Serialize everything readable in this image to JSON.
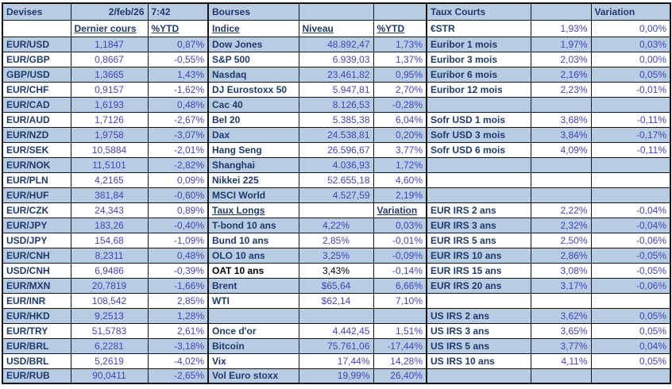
{
  "meta": {
    "date": "2/feb/26",
    "time": "7:42"
  },
  "colors": {
    "row_shading": "#b8cce4",
    "label_text": "#1f3a6e",
    "value_text": "#4244c0",
    "black_text": "#000000",
    "grid_border": "#151515"
  },
  "column_roles": [
    "currency-pair",
    "last-price",
    "ytd",
    "index-name",
    "level",
    "ytd",
    "rate-name",
    "rate",
    "variation"
  ],
  "grid": {
    "rows": [
      {
        "shaded": true,
        "cells": [
          {
            "t": "Devises",
            "k": "title"
          },
          {
            "t": "2/feb/26",
            "k": "date"
          },
          {
            "t": "7:42",
            "k": "time"
          },
          {
            "t": "Bourses",
            "k": "title"
          },
          {
            "k": "blank"
          },
          {
            "k": "blank"
          },
          {
            "t": "Taux Courts",
            "k": "title"
          },
          {
            "k": "blank"
          },
          {
            "t": "Variation",
            "k": "title"
          }
        ]
      },
      {
        "shaded": false,
        "cells": [
          {
            "k": "blank"
          },
          {
            "t": "Dernier cours",
            "k": "col-header"
          },
          {
            "t": "%YTD",
            "k": "col-header"
          },
          {
            "t": "Indice",
            "k": "col-header"
          },
          {
            "t": "Niveau",
            "k": "col-header"
          },
          {
            "t": "%YTD",
            "k": "col-header"
          },
          {
            "t": "€STR",
            "k": "label"
          },
          {
            "t": "1,93%",
            "k": "value"
          },
          {
            "t": "0,00%",
            "k": "value"
          }
        ]
      },
      {
        "shaded": true,
        "cells": [
          {
            "t": "EUR/USD",
            "k": "label"
          },
          {
            "t": "1,1847",
            "k": "value-center"
          },
          {
            "t": "0,87%",
            "k": "value"
          },
          {
            "t": "Dow Jones",
            "k": "label"
          },
          {
            "t": "48.892,47",
            "k": "value"
          },
          {
            "t": "1,73%",
            "k": "value"
          },
          {
            "t": "Euribor 1 mois",
            "k": "label"
          },
          {
            "t": "1,97%",
            "k": "value"
          },
          {
            "t": "0,03%",
            "k": "value"
          }
        ]
      },
      {
        "shaded": false,
        "cells": [
          {
            "t": "EUR/GBP",
            "k": "label"
          },
          {
            "t": "0,8667",
            "k": "value-center"
          },
          {
            "t": "-0,55%",
            "k": "value"
          },
          {
            "t": "S&P 500",
            "k": "label"
          },
          {
            "t": "6.939,03",
            "k": "value"
          },
          {
            "t": "1,37%",
            "k": "value"
          },
          {
            "t": "Euribor 3 mois",
            "k": "label"
          },
          {
            "t": "2,03%",
            "k": "value"
          },
          {
            "t": "0,00%",
            "k": "value"
          }
        ]
      },
      {
        "shaded": true,
        "cells": [
          {
            "t": "GBP/USD",
            "k": "label"
          },
          {
            "t": "1,3665",
            "k": "value-center"
          },
          {
            "t": "1,43%",
            "k": "value"
          },
          {
            "t": "Nasdaq",
            "k": "label"
          },
          {
            "t": "23.461,82",
            "k": "value"
          },
          {
            "t": "0,95%",
            "k": "value"
          },
          {
            "t": "Euribor 6 mois",
            "k": "label"
          },
          {
            "t": "2,16%",
            "k": "value"
          },
          {
            "t": "0,05%",
            "k": "value"
          }
        ]
      },
      {
        "shaded": false,
        "cells": [
          {
            "t": "EUR/CHF",
            "k": "label"
          },
          {
            "t": "0,9157",
            "k": "value-center"
          },
          {
            "t": "-1,62%",
            "k": "value"
          },
          {
            "t": "DJ Eurostoxx 50",
            "k": "label"
          },
          {
            "t": "5.947,81",
            "k": "value"
          },
          {
            "t": "2,70%",
            "k": "value"
          },
          {
            "t": "Euribor 12 mois",
            "k": "label"
          },
          {
            "t": "2,23%",
            "k": "value"
          },
          {
            "t": "-0,01%",
            "k": "value"
          }
        ]
      },
      {
        "shaded": true,
        "cells": [
          {
            "t": "EUR/CAD",
            "k": "label"
          },
          {
            "t": "1,6193",
            "k": "value-center"
          },
          {
            "t": "0,48%",
            "k": "value"
          },
          {
            "t": "Cac 40",
            "k": "label"
          },
          {
            "t": "8.126,53",
            "k": "value"
          },
          {
            "t": "-0,28%",
            "k": "value"
          },
          {
            "k": "blank"
          },
          {
            "k": "blank"
          },
          {
            "k": "blank"
          }
        ]
      },
      {
        "shaded": false,
        "cells": [
          {
            "t": "EUR/AUD",
            "k": "label"
          },
          {
            "t": "1,7126",
            "k": "value-center"
          },
          {
            "t": "-2,67%",
            "k": "value"
          },
          {
            "t": "Bel 20",
            "k": "label"
          },
          {
            "t": "5.385,38",
            "k": "value"
          },
          {
            "t": "6,04%",
            "k": "value"
          },
          {
            "t": "Sofr USD 1 mois",
            "k": "label"
          },
          {
            "t": "3,68%",
            "k": "value"
          },
          {
            "t": "-0,11%",
            "k": "value"
          }
        ]
      },
      {
        "shaded": true,
        "cells": [
          {
            "t": "EUR/NZD",
            "k": "label"
          },
          {
            "t": "1,9758",
            "k": "value-center"
          },
          {
            "t": "-3,07%",
            "k": "value"
          },
          {
            "t": "Dax",
            "k": "label"
          },
          {
            "t": "24.538,81",
            "k": "value"
          },
          {
            "t": "0,20%",
            "k": "value"
          },
          {
            "t": "Sofr USD 3 mois",
            "k": "label"
          },
          {
            "t": "3,84%",
            "k": "value"
          },
          {
            "t": "-0,17%",
            "k": "value"
          }
        ]
      },
      {
        "shaded": false,
        "cells": [
          {
            "t": "EUR/SEK",
            "k": "label"
          },
          {
            "t": "10,5884",
            "k": "value-center"
          },
          {
            "t": "-2,01%",
            "k": "value"
          },
          {
            "t": "Hang Seng",
            "k": "label"
          },
          {
            "t": "26.596,67",
            "k": "value"
          },
          {
            "t": "3,77%",
            "k": "value"
          },
          {
            "t": "Sofr USD 6 mois",
            "k": "label"
          },
          {
            "t": "4,09%",
            "k": "value"
          },
          {
            "t": "-0,11%",
            "k": "value"
          }
        ]
      },
      {
        "shaded": true,
        "cells": [
          {
            "t": "EUR/NOK",
            "k": "label"
          },
          {
            "t": "11,5101",
            "k": "value-center"
          },
          {
            "t": "-2,82%",
            "k": "value"
          },
          {
            "t": "Shanghai",
            "k": "label"
          },
          {
            "t": "4.036,93",
            "k": "value"
          },
          {
            "t": "1,72%",
            "k": "value"
          },
          {
            "k": "blank"
          },
          {
            "k": "blank"
          },
          {
            "k": "blank"
          }
        ]
      },
      {
        "shaded": false,
        "cells": [
          {
            "t": "EUR/PLN",
            "k": "label"
          },
          {
            "t": "4,2165",
            "k": "value-center"
          },
          {
            "t": "0,09%",
            "k": "value"
          },
          {
            "t": "Nikkei 225",
            "k": "label"
          },
          {
            "t": "52.655,18",
            "k": "value"
          },
          {
            "t": "4,60%",
            "k": "value"
          },
          {
            "k": "blank"
          },
          {
            "k": "blank"
          },
          {
            "k": "blank"
          }
        ]
      },
      {
        "shaded": true,
        "cells": [
          {
            "t": "EUR/HUF",
            "k": "label"
          },
          {
            "t": "381,84",
            "k": "value-center"
          },
          {
            "t": "-0,60%",
            "k": "value"
          },
          {
            "t": "MSCI World",
            "k": "label"
          },
          {
            "t": "4.527,59",
            "k": "value"
          },
          {
            "t": "2,19%",
            "k": "value"
          },
          {
            "k": "blank"
          },
          {
            "k": "blank"
          },
          {
            "k": "blank"
          }
        ]
      },
      {
        "shaded": false,
        "cells": [
          {
            "t": "EUR/CZK",
            "k": "label"
          },
          {
            "t": "24,343",
            "k": "value-center"
          },
          {
            "t": "0,89%",
            "k": "value"
          },
          {
            "t": "Taux Longs",
            "k": "col-header"
          },
          {
            "k": "blank"
          },
          {
            "t": "Variation",
            "k": "col-header"
          },
          {
            "t": "EUR IRS 2 ans",
            "k": "label"
          },
          {
            "t": "2,22%",
            "k": "value"
          },
          {
            "t": "-0,04%",
            "k": "value"
          }
        ]
      },
      {
        "shaded": true,
        "cells": [
          {
            "t": "EUR/JPY",
            "k": "label"
          },
          {
            "t": "183,26",
            "k": "value-center"
          },
          {
            "t": "-0,40%",
            "k": "value"
          },
          {
            "t": "T-bond 10 ans",
            "k": "label"
          },
          {
            "t": "4,22%",
            "k": "value-center"
          },
          {
            "t": "0,03%",
            "k": "value"
          },
          {
            "t": "EUR IRS 3 ans",
            "k": "label"
          },
          {
            "t": "2,32%",
            "k": "value"
          },
          {
            "t": "-0,04%",
            "k": "value"
          }
        ]
      },
      {
        "shaded": false,
        "cells": [
          {
            "t": "USD/JPY",
            "k": "label"
          },
          {
            "t": "154,68",
            "k": "value-center"
          },
          {
            "t": "-1,09%",
            "k": "value"
          },
          {
            "t": "Bund 10 ans",
            "k": "label"
          },
          {
            "t": "2,85%",
            "k": "value-center"
          },
          {
            "t": "-0,01%",
            "k": "value"
          },
          {
            "t": "EUR IRS 5 ans",
            "k": "label"
          },
          {
            "t": "2,50%",
            "k": "value"
          },
          {
            "t": "-0,06%",
            "k": "value"
          }
        ]
      },
      {
        "shaded": true,
        "cells": [
          {
            "t": "EUR/CNH",
            "k": "label"
          },
          {
            "t": "8,2311",
            "k": "value-center"
          },
          {
            "t": "0,48%",
            "k": "value"
          },
          {
            "t": "OLO 10 ans",
            "k": "label"
          },
          {
            "t": "3,25%",
            "k": "value-center"
          },
          {
            "t": "-0,09%",
            "k": "value"
          },
          {
            "t": "EUR IRS 10 ans",
            "k": "label"
          },
          {
            "t": "2,86%",
            "k": "value"
          },
          {
            "t": "-0,05%",
            "k": "value"
          }
        ]
      },
      {
        "shaded": false,
        "cells": [
          {
            "t": "USD/CNH",
            "k": "label"
          },
          {
            "t": "6,9486",
            "k": "value-center"
          },
          {
            "t": "-0,39%",
            "k": "value"
          },
          {
            "t": "OAT 10 ans",
            "k": "label-black"
          },
          {
            "t": "3,43%",
            "k": "value-black"
          },
          {
            "t": "-0,14%",
            "k": "value"
          },
          {
            "t": "EUR IRS 15 ans",
            "k": "label"
          },
          {
            "t": "3,08%",
            "k": "value"
          },
          {
            "t": "-0,05%",
            "k": "value"
          }
        ]
      },
      {
        "shaded": true,
        "cells": [
          {
            "t": "EUR/MXN",
            "k": "label"
          },
          {
            "t": "20,7819",
            "k": "value-center"
          },
          {
            "t": "-1,66%",
            "k": "value"
          },
          {
            "t": "Brent",
            "k": "label"
          },
          {
            "t": "$65,64",
            "k": "value-center"
          },
          {
            "t": "6,66%",
            "k": "value"
          },
          {
            "t": "EUR IRS 20 ans",
            "k": "label"
          },
          {
            "t": "3,17%",
            "k": "value"
          },
          {
            "t": "-0,06%",
            "k": "value"
          }
        ]
      },
      {
        "shaded": false,
        "cells": [
          {
            "t": "EUR/INR",
            "k": "label"
          },
          {
            "t": "108,542",
            "k": "value-center"
          },
          {
            "t": "2,85%",
            "k": "value"
          },
          {
            "t": "WTI",
            "k": "label"
          },
          {
            "t": "$62,14",
            "k": "value-center"
          },
          {
            "t": "7,10%",
            "k": "value"
          },
          {
            "k": "blank"
          },
          {
            "k": "blank"
          },
          {
            "k": "blank"
          }
        ]
      },
      {
        "shaded": true,
        "cells": [
          {
            "t": "EUR/HKD",
            "k": "label"
          },
          {
            "t": "9,2513",
            "k": "value-center"
          },
          {
            "t": "1,28%",
            "k": "value"
          },
          {
            "k": "blank"
          },
          {
            "k": "blank"
          },
          {
            "k": "blank"
          },
          {
            "t": "US IRS 2 ans",
            "k": "label"
          },
          {
            "t": "3,62%",
            "k": "value"
          },
          {
            "t": "0,05%",
            "k": "value"
          }
        ]
      },
      {
        "shaded": false,
        "cells": [
          {
            "t": "EUR/TRY",
            "k": "label"
          },
          {
            "t": "51,5783",
            "k": "value-center"
          },
          {
            "t": "2,61%",
            "k": "value"
          },
          {
            "t": "Once d'or",
            "k": "label"
          },
          {
            "t": "4.442,45",
            "k": "value"
          },
          {
            "t": "1,51%",
            "k": "value"
          },
          {
            "t": "US IRS 3 ans",
            "k": "label"
          },
          {
            "t": "3,65%",
            "k": "value"
          },
          {
            "t": "0,05%",
            "k": "value"
          }
        ]
      },
      {
        "shaded": true,
        "cells": [
          {
            "t": "EUR/BRL",
            "k": "label"
          },
          {
            "t": "6,2281",
            "k": "value-center"
          },
          {
            "t": "-3,18%",
            "k": "value"
          },
          {
            "t": "Bitcoin",
            "k": "label"
          },
          {
            "t": "75.761,06",
            "k": "value"
          },
          {
            "t": "-17,44%",
            "k": "value"
          },
          {
            "t": "US IRS 5 ans",
            "k": "label"
          },
          {
            "t": "3,77%",
            "k": "value"
          },
          {
            "t": "0,04%",
            "k": "value"
          }
        ]
      },
      {
        "shaded": false,
        "cells": [
          {
            "t": "USD/BRL",
            "k": "label"
          },
          {
            "t": "5,2619",
            "k": "value-center"
          },
          {
            "t": "-4,02%",
            "k": "value"
          },
          {
            "t": "Vix",
            "k": "label"
          },
          {
            "t": "17,44%",
            "k": "value"
          },
          {
            "t": "14,28%",
            "k": "value"
          },
          {
            "t": "US IRS 10 ans",
            "k": "label"
          },
          {
            "t": "4,11%",
            "k": "value"
          },
          {
            "t": "0,05%",
            "k": "value"
          }
        ]
      },
      {
        "shaded": true,
        "cells": [
          {
            "t": "EUR/RUB",
            "k": "label"
          },
          {
            "t": "90,0411",
            "k": "value-center"
          },
          {
            "t": "-2,65%",
            "k": "value"
          },
          {
            "t": "Vol Euro stoxx",
            "k": "label"
          },
          {
            "t": "19,99%",
            "k": "value"
          },
          {
            "t": "26,40%",
            "k": "value"
          },
          {
            "k": "blank"
          },
          {
            "k": "blank"
          },
          {
            "k": "blank"
          }
        ]
      }
    ]
  }
}
